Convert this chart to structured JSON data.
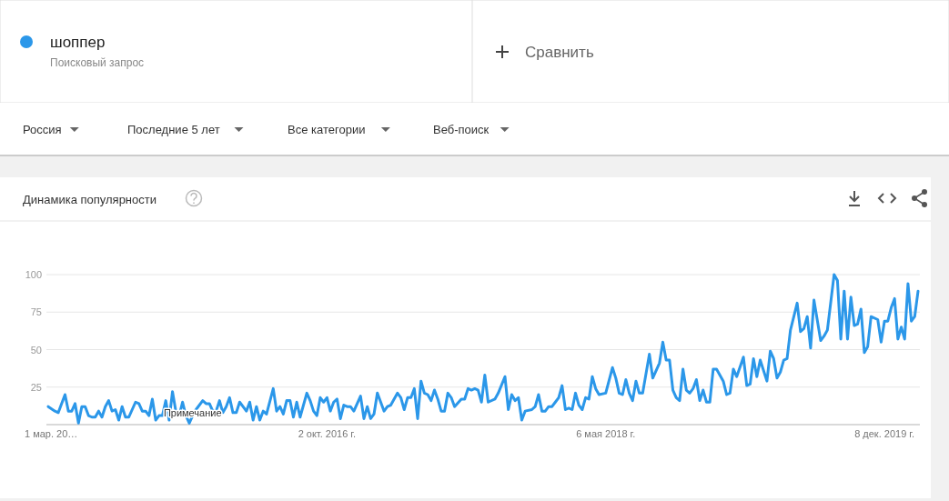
{
  "chart_data": {
    "type": "line",
    "title": "Динамика популярности",
    "legend": "top left",
    "annotations": [
      "Поисковый запрос",
      "Сравнить",
      "Россия",
      "Последние 5 лет",
      "Все категории",
      "Веб-поиск",
      {
        "text": "Примечание",
        "x": "2015-12-27",
        "y": 5
      }
    ],
    "xlim": [
      "2015-03-01",
      "2020-02-16"
    ],
    "xticks": [
      {
        "value": "2015-03-01",
        "label": "1 мар. 20…"
      },
      {
        "value": "2016-10-02",
        "label": "2 окт. 2016 г."
      },
      {
        "value": "2018-05-06",
        "label": "6 мая 2018 г."
      },
      {
        "value": "2019-12-08",
        "label": "8 дек. 2019 г."
      }
    ],
    "ylim": [
      0,
      100
    ],
    "yticks": [
      25,
      50,
      75,
      100
    ],
    "grid": "y",
    "marker": "none",
    "line_style": "solid",
    "x": [
      "2015-03-01",
      "2015-03-15",
      "2015-03-22",
      "2015-04-05",
      "2015-04-12",
      "2015-04-19",
      "2015-04-26",
      "2015-05-03",
      "2015-05-10",
      "2015-05-17",
      "2015-05-24",
      "2015-05-31",
      "2015-06-07",
      "2015-06-14",
      "2015-06-21",
      "2015-06-28",
      "2015-07-05",
      "2015-07-12",
      "2015-07-19",
      "2015-07-26",
      "2015-08-02",
      "2015-08-09",
      "2015-08-16",
      "2015-08-30",
      "2015-09-06",
      "2015-09-13",
      "2015-09-20",
      "2015-09-27",
      "2015-10-04",
      "2015-10-11",
      "2015-10-18",
      "2015-10-25",
      "2015-11-01",
      "2015-11-08",
      "2015-11-15",
      "2015-11-22",
      "2015-11-29",
      "2015-12-06",
      "2015-12-13",
      "2015-12-20",
      "2015-12-27",
      "2016-01-03",
      "2016-01-17",
      "2016-01-24",
      "2016-01-31",
      "2016-02-07",
      "2016-02-14",
      "2016-02-21",
      "2016-02-28",
      "2016-03-06",
      "2016-03-13",
      "2016-03-20",
      "2016-03-27",
      "2016-04-03",
      "2016-04-10",
      "2016-04-17",
      "2016-04-24",
      "2016-05-01",
      "2016-05-08",
      "2016-05-15",
      "2016-05-22",
      "2016-05-29",
      "2016-06-12",
      "2016-06-19",
      "2016-06-26",
      "2016-07-03",
      "2016-07-10",
      "2016-07-17",
      "2016-07-24",
      "2016-07-31",
      "2016-08-07",
      "2016-08-21",
      "2016-08-28",
      "2016-09-04",
      "2016-09-11",
      "2016-09-18",
      "2016-09-25",
      "2016-10-02",
      "2016-10-09",
      "2016-10-16",
      "2016-10-23",
      "2016-10-30",
      "2016-11-06",
      "2016-11-13",
      "2016-11-20",
      "2016-11-27",
      "2016-12-11",
      "2016-12-18",
      "2016-12-25",
      "2017-01-01",
      "2017-01-08",
      "2017-01-15",
      "2017-01-29",
      "2017-02-05",
      "2017-02-12",
      "2017-02-26",
      "2017-03-05",
      "2017-03-12",
      "2017-03-19",
      "2017-03-26",
      "2017-04-02",
      "2017-04-09",
      "2017-04-16",
      "2017-04-23",
      "2017-04-30",
      "2017-05-07",
      "2017-05-14",
      "2017-05-21",
      "2017-05-28",
      "2017-06-04",
      "2017-06-11",
      "2017-06-18",
      "2017-06-25",
      "2017-07-09",
      "2017-07-16",
      "2017-07-23",
      "2017-07-30",
      "2017-08-06",
      "2017-08-13",
      "2017-08-20",
      "2017-08-27",
      "2017-09-03",
      "2017-09-17",
      "2017-09-24",
      "2017-10-08",
      "2017-10-15",
      "2017-10-22",
      "2017-10-29",
      "2017-11-05",
      "2017-11-12",
      "2017-11-19",
      "2017-12-03",
      "2017-12-10",
      "2017-12-17",
      "2017-12-24",
      "2017-12-31",
      "2018-01-07",
      "2018-01-14",
      "2018-01-21",
      "2018-01-28",
      "2018-02-04",
      "2018-02-11",
      "2018-02-18",
      "2018-02-25",
      "2018-03-04",
      "2018-03-11",
      "2018-03-18",
      "2018-03-25",
      "2018-04-01",
      "2018-04-08",
      "2018-04-15",
      "2018-04-22",
      "2018-05-06",
      "2018-05-20",
      "2018-05-27",
      "2018-06-03",
      "2018-06-10",
      "2018-06-17",
      "2018-06-24",
      "2018-07-01",
      "2018-07-08",
      "2018-07-15",
      "2018-07-22",
      "2018-08-05",
      "2018-08-12",
      "2018-08-26",
      "2018-09-02",
      "2018-09-09",
      "2018-09-16",
      "2018-09-23",
      "2018-09-30",
      "2018-10-07",
      "2018-10-14",
      "2018-10-21",
      "2018-10-28",
      "2018-11-04",
      "2018-11-11",
      "2018-11-18",
      "2018-11-25",
      "2018-12-02",
      "2018-12-09",
      "2018-12-16",
      "2018-12-23",
      "2019-01-06",
      "2019-01-13",
      "2019-01-20",
      "2019-01-27",
      "2019-02-03",
      "2019-02-17",
      "2019-02-24",
      "2019-03-03",
      "2019-03-10",
      "2019-03-17",
      "2019-03-24",
      "2019-04-07",
      "2019-04-14",
      "2019-04-21",
      "2019-04-28",
      "2019-05-05",
      "2019-05-12",
      "2019-05-19",
      "2019-05-26",
      "2019-06-09",
      "2019-06-16",
      "2019-06-23",
      "2019-06-30",
      "2019-07-07",
      "2019-07-14",
      "2019-07-28",
      "2019-08-04",
      "2019-08-11",
      "2019-08-25",
      "2019-09-01",
      "2019-09-08",
      "2019-09-15",
      "2019-09-22",
      "2019-09-29",
      "2019-10-06",
      "2019-10-13",
      "2019-10-20",
      "2019-10-27",
      "2019-11-03",
      "2019-11-10",
      "2019-11-24",
      "2019-12-01",
      "2019-12-08",
      "2019-12-15",
      "2019-12-22",
      "2019-12-29",
      "2020-01-05",
      "2020-01-12",
      "2020-01-19",
      "2020-01-26",
      "2020-02-02",
      "2020-02-09",
      "2020-02-16"
    ],
    "series": [
      {
        "name": "шоппер",
        "color": "#2b97e9",
        "values": [
          12,
          9,
          8,
          20,
          9,
          9,
          14,
          1,
          12,
          12,
          6,
          5,
          5,
          9,
          5,
          12,
          16,
          9,
          10,
          3,
          12,
          5,
          5,
          15,
          14,
          9,
          9,
          6,
          17,
          3,
          6,
          6,
          16,
          3,
          22,
          9,
          6,
          15,
          6,
          1,
          6,
          10,
          16,
          14,
          14,
          9,
          9,
          16,
          8,
          12,
          18,
          8,
          8,
          15,
          12,
          9,
          15,
          3,
          12,
          3,
          9,
          7,
          24,
          9,
          12,
          7,
          16,
          16,
          5,
          15,
          5,
          21,
          16,
          9,
          6,
          18,
          15,
          18,
          9,
          15,
          17,
          4,
          13,
          12,
          12,
          9,
          19,
          4,
          12,
          4,
          7,
          21,
          9,
          12,
          13,
          21,
          18,
          10,
          18,
          18,
          24,
          4,
          29,
          21,
          20,
          16,
          23,
          17,
          9,
          9,
          21,
          18,
          12,
          17,
          17,
          24,
          23,
          24,
          23,
          15,
          33,
          15,
          17,
          21,
          32,
          10,
          20,
          16,
          18,
          3,
          9,
          10,
          12,
          20,
          9,
          9,
          12,
          12,
          15,
          18,
          26,
          10,
          11,
          10,
          21,
          13,
          10,
          18,
          17,
          32,
          24,
          20,
          21,
          38,
          31,
          21,
          20,
          30,
          21,
          16,
          29,
          21,
          21,
          47,
          31,
          41,
          55,
          43,
          43,
          23,
          18,
          16,
          37,
          23,
          21,
          24,
          30,
          16,
          23,
          15,
          15,
          37,
          37,
          29,
          20,
          21,
          37,
          32,
          45,
          26,
          27,
          44,
          32,
          43,
          29,
          49,
          44,
          31,
          35,
          43,
          44,
          63,
          81,
          62,
          64,
          72,
          51,
          83,
          56,
          59,
          63,
          100,
          96,
          57,
          89,
          57,
          85,
          66,
          67,
          77,
          48,
          52,
          72,
          70,
          55,
          69,
          69,
          78,
          84,
          57,
          65,
          57,
          94,
          69,
          72,
          89
        ]
      }
    ]
  }
}
